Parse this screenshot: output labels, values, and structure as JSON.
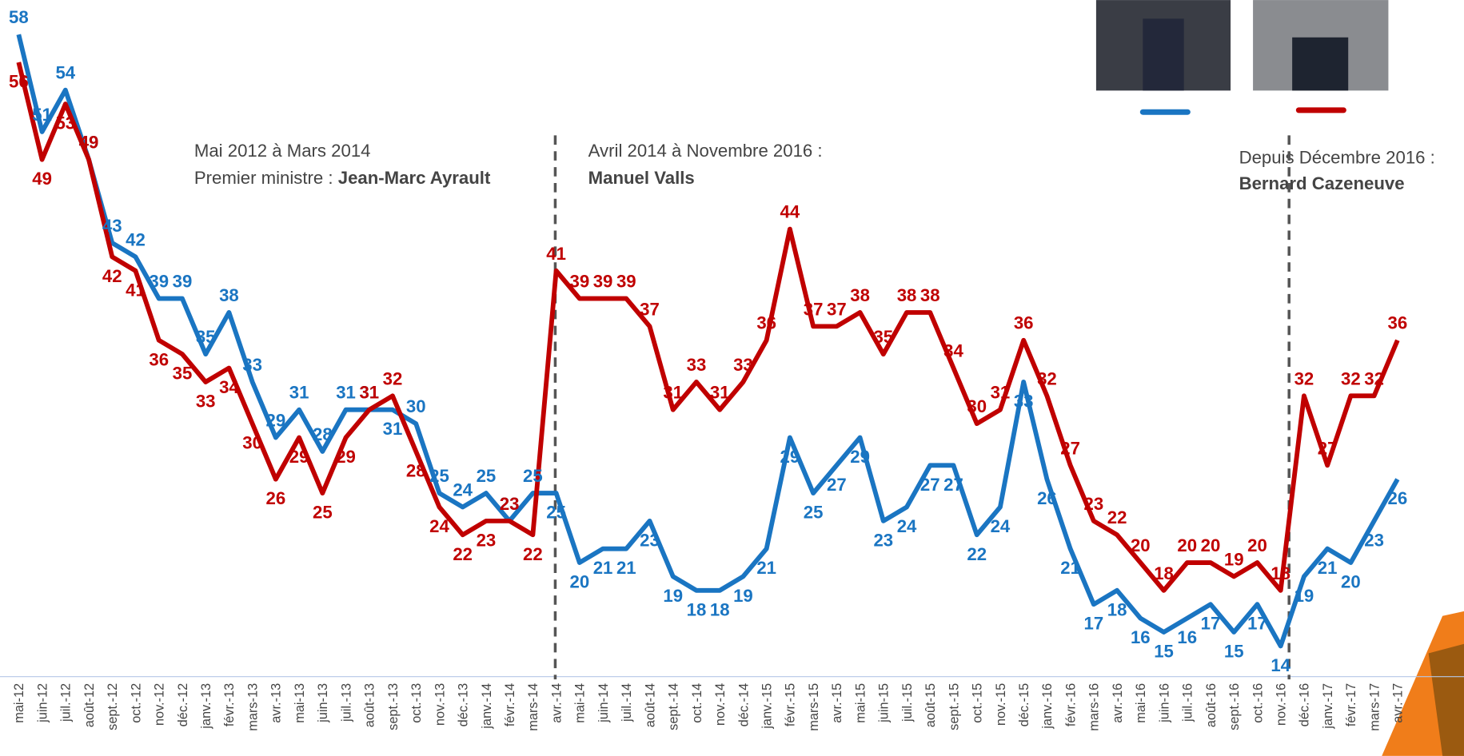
{
  "chart_data": {
    "type": "line",
    "categories": [
      "mai-12",
      "juin-12",
      "juil.-12",
      "août-12",
      "sept.-12",
      "oct.-12",
      "nov.-12",
      "déc.-12",
      "janv.-13",
      "févr.-13",
      "mars-13",
      "avr.-13",
      "mai-13",
      "juin-13",
      "juil.-13",
      "août-13",
      "sept.-13",
      "oct.-13",
      "nov.-13",
      "déc.-13",
      "janv.-14",
      "févr.-14",
      "mars-14",
      "avr.-14",
      "mai-14",
      "juin-14",
      "juil.-14",
      "août-14",
      "sept.-14",
      "oct.-14",
      "nov.-14",
      "déc.-14",
      "janv.-15",
      "févr.-15",
      "mars-15",
      "avr.-15",
      "mai-15",
      "juin-15",
      "juil.-15",
      "août-15",
      "sept.-15",
      "oct.-15",
      "nov.-15",
      "déc.-15",
      "janv.-16",
      "févr.-16",
      "mars-16",
      "avr.-16",
      "mai-16",
      "juin-16",
      "juil.-16",
      "août-16",
      "sept.-16",
      "oct.-16",
      "nov.-16",
      "déc.-16",
      "janv.-17",
      "févr.-17",
      "mars-17",
      "avr.-17"
    ],
    "series": [
      {
        "color": "#1a75c2",
        "values": [
          58,
          51,
          54,
          49,
          43,
          42,
          39,
          39,
          35,
          38,
          33,
          29,
          31,
          28,
          31,
          31,
          31,
          30,
          25,
          24,
          25,
          23,
          25,
          25,
          20,
          21,
          21,
          23,
          19,
          18,
          18,
          19,
          21,
          29,
          25,
          27,
          29,
          23,
          24,
          27,
          27,
          22,
          24,
          33,
          26,
          21,
          17,
          18,
          16,
          15,
          16,
          17,
          15,
          17,
          14,
          19,
          21,
          20,
          23,
          26
        ]
      },
      {
        "color": "#c00000",
        "values": [
          56,
          49,
          53,
          49,
          42,
          41,
          36,
          35,
          33,
          34,
          30,
          26,
          29,
          25,
          29,
          31,
          32,
          28,
          24,
          22,
          23,
          23,
          22,
          41,
          39,
          39,
          39,
          37,
          31,
          33,
          31,
          33,
          36,
          44,
          37,
          37,
          38,
          35,
          38,
          38,
          34,
          30,
          31,
          36,
          32,
          27,
          23,
          22,
          20,
          18,
          20,
          20,
          19,
          20,
          18,
          32,
          27,
          32,
          32,
          36
        ]
      }
    ],
    "ylim": [
      12,
      59
    ],
    "annotations": [
      [
        "Mai 2012 à Mars 2014",
        "Premier ministre : ",
        "Jean-Marc Ayrault"
      ],
      [
        "Avril 2014 à Novembre 2016 :",
        "Manuel Valls"
      ],
      [
        "Depuis Décembre 2016 :",
        "Bernard Cazeneuve"
      ]
    ]
  }
}
